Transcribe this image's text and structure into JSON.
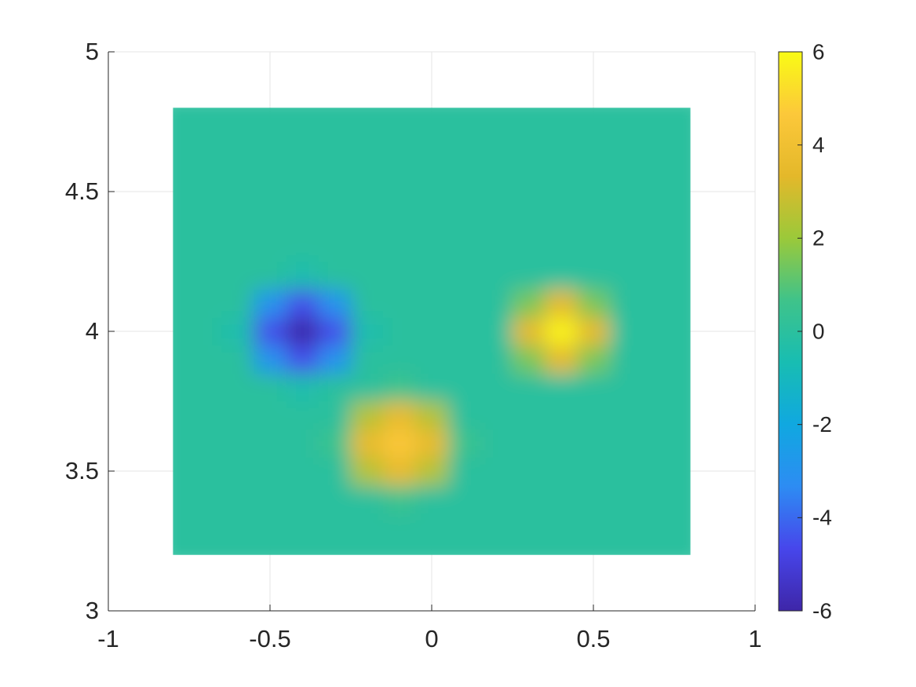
{
  "chart_data": {
    "type": "heatmap",
    "x": [
      -0.8,
      -0.7,
      -0.6,
      -0.5,
      -0.4,
      -0.3,
      -0.2,
      -0.1,
      0,
      0.1,
      0.2,
      0.3,
      0.4,
      0.5,
      0.6,
      0.7,
      0.8
    ],
    "y": [
      3.2,
      3.3,
      3.4,
      3.5,
      3.6,
      3.7,
      3.8,
      3.9,
      4.0,
      4.1,
      4.2,
      4.3,
      4.4,
      4.5,
      4.6,
      4.7,
      4.8
    ],
    "values": [
      [
        0,
        0,
        0,
        0,
        0,
        0,
        0,
        0,
        0,
        0,
        0,
        0,
        0,
        0,
        0,
        0,
        0
      ],
      [
        0,
        0,
        0,
        0,
        0,
        0,
        0,
        0,
        0,
        0,
        0,
        0,
        0,
        0,
        0,
        0,
        0
      ],
      [
        0,
        0,
        0,
        0,
        0,
        0,
        0,
        0.5,
        0,
        0,
        0,
        0,
        0,
        0,
        0,
        0,
        0
      ],
      [
        0,
        0,
        0,
        0,
        0,
        0,
        2.5,
        3.6,
        2.5,
        0,
        0,
        0,
        0,
        0,
        0,
        0,
        0
      ],
      [
        0,
        0,
        0,
        0,
        0,
        0.5,
        3.6,
        4.6,
        3.6,
        0.5,
        0,
        0,
        0,
        0,
        0,
        0,
        0
      ],
      [
        0,
        0,
        0,
        0,
        0,
        0,
        2.5,
        3.6,
        2.5,
        0,
        0,
        0,
        0,
        0,
        0,
        0,
        0
      ],
      [
        0,
        0,
        0,
        0,
        -0.5,
        0,
        0,
        0.5,
        0,
        0,
        0,
        0,
        0,
        0,
        0,
        0,
        0
      ],
      [
        0,
        0,
        0,
        -3,
        -4.5,
        -3,
        0,
        0,
        0,
        0,
        0,
        1.5,
        3.5,
        1.5,
        0,
        0,
        0
      ],
      [
        0,
        0,
        -0.5,
        -4.5,
        -6,
        -4.5,
        -0.5,
        0,
        0,
        0,
        0,
        3.5,
        5.8,
        3.5,
        0,
        0,
        0
      ],
      [
        0,
        0,
        0,
        -3,
        -4.5,
        -3,
        0,
        0,
        0,
        0,
        0,
        1.5,
        3.5,
        1.5,
        0,
        0,
        0
      ],
      [
        0,
        0,
        0,
        0,
        -0.5,
        0,
        0,
        0,
        0,
        0,
        0,
        0,
        0,
        0,
        0,
        0,
        0
      ],
      [
        0,
        0,
        0,
        0,
        0,
        0,
        0,
        0,
        0,
        0,
        0,
        0,
        0,
        0,
        0,
        0,
        0
      ],
      [
        0,
        0,
        0,
        0,
        0,
        0,
        0,
        0,
        0,
        0,
        0,
        0,
        0,
        0,
        0,
        0,
        0
      ],
      [
        0,
        0,
        0,
        0,
        0,
        0,
        0,
        0,
        0,
        0,
        0,
        0,
        0,
        0,
        0,
        0,
        0
      ],
      [
        0,
        0,
        0,
        0,
        0,
        0,
        0,
        0,
        0,
        0,
        0,
        0,
        0,
        0,
        0,
        0,
        0
      ],
      [
        0,
        0,
        0,
        0,
        0,
        0,
        0,
        0,
        0,
        0,
        0,
        0,
        0,
        0,
        0,
        0,
        0
      ],
      [
        0,
        0,
        0,
        0,
        0,
        0,
        0,
        0,
        0,
        0,
        0,
        0,
        0,
        0,
        0,
        0,
        0
      ]
    ],
    "xlim": [
      -1,
      1
    ],
    "ylim": [
      3,
      5
    ],
    "xticks": [
      -1,
      -0.5,
      0,
      0.5,
      1
    ],
    "yticks": [
      3,
      3.5,
      4,
      4.5,
      5
    ],
    "grid": true,
    "clim": [
      -6,
      6
    ],
    "cticks": [
      -6,
      -4,
      -2,
      0,
      2,
      4,
      6
    ],
    "colormap": [
      "#3e26a8",
      "#4746eb",
      "#2d8cf3",
      "#10a8e0",
      "#18bdb2",
      "#3fc38a",
      "#9bc93a",
      "#e4b82a",
      "#fcc83a",
      "#f9fb15"
    ]
  }
}
